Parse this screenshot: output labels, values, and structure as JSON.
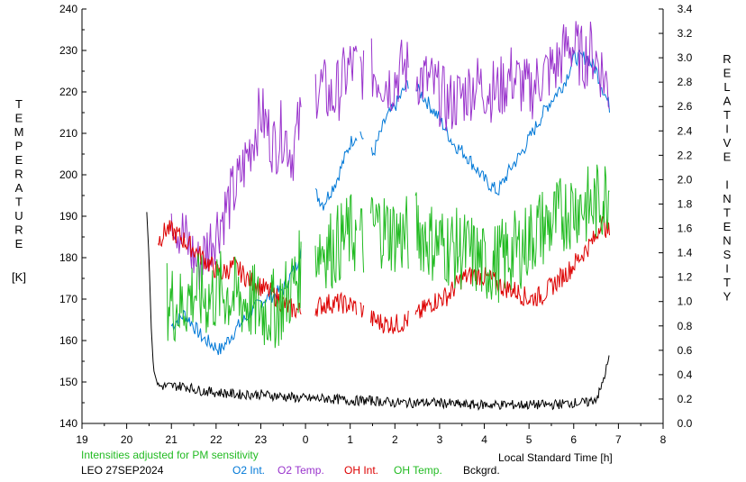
{
  "chart_data": {
    "type": "line",
    "left_axis": {
      "title_letters": [
        "T",
        "E",
        "M",
        "P",
        "E",
        "R",
        "A",
        "T",
        "U",
        "R",
        "E"
      ],
      "unit": "[K]",
      "ylim": [
        140,
        240
      ],
      "ticks": [
        "140",
        "150",
        "160",
        "170",
        "180",
        "190",
        "200",
        "210",
        "220",
        "230",
        "240"
      ]
    },
    "right_axis": {
      "title_letters": [
        "R",
        "E",
        "L",
        "A",
        "T",
        "I",
        "V",
        "E",
        "",
        "I",
        "N",
        "T",
        "E",
        "N",
        "S",
        "I",
        "T",
        "Y"
      ],
      "ylim": [
        0,
        3.4
      ],
      "ticks": [
        "0.0",
        "0.2",
        "0.4",
        "0.6",
        "0.8",
        "1.0",
        "1.2",
        "1.4",
        "1.6",
        "1.8",
        "2.0",
        "2.2",
        "2.4",
        "2.6",
        "2.8",
        "3.0",
        "3.2",
        "3.4"
      ]
    },
    "x_axis": {
      "label": "Local Standard Time [h]",
      "tick_labels": [
        "19",
        "20",
        "21",
        "22",
        "23",
        "0",
        "1",
        "2",
        "3",
        "4",
        "5",
        "6",
        "7",
        "8"
      ]
    },
    "note": "Intensities adjusted for PM sensitivity",
    "station": "LEO 27SEP2024",
    "series": [
      {
        "name": "O2 Int.",
        "color": "#0078d7",
        "axis": "right",
        "points": [
          [
            21.0,
            0.8
          ],
          [
            21.3,
            0.9
          ],
          [
            21.7,
            0.7
          ],
          [
            22.1,
            0.6
          ],
          [
            22.5,
            0.8
          ],
          [
            23.0,
            1.0
          ],
          [
            23.5,
            1.1
          ],
          [
            23.8,
            1.3
          ],
          [
            24.0,
            1.6
          ],
          [
            24.2,
            1.9
          ],
          [
            24.4,
            1.8
          ],
          [
            24.7,
            2.0
          ],
          [
            25.0,
            2.3
          ],
          [
            25.2,
            2.4
          ],
          [
            25.5,
            2.2
          ],
          [
            25.8,
            2.5
          ],
          [
            26.0,
            2.6
          ],
          [
            26.3,
            2.8
          ],
          [
            26.6,
            2.7
          ],
          [
            27.0,
            2.5
          ],
          [
            27.3,
            2.3
          ],
          [
            27.6,
            2.2
          ],
          [
            28.0,
            2.0
          ],
          [
            28.3,
            1.9
          ],
          [
            28.6,
            2.1
          ],
          [
            28.8,
            2.2
          ],
          [
            29.1,
            2.4
          ],
          [
            29.4,
            2.6
          ],
          [
            29.8,
            2.8
          ],
          [
            30.0,
            3.0
          ],
          [
            30.3,
            3.0
          ],
          [
            30.5,
            2.9
          ],
          [
            30.7,
            2.7
          ],
          [
            30.8,
            2.6
          ]
        ]
      },
      {
        "name": "O2 Temp.",
        "color": "#9933cc",
        "axis": "left",
        "points": [
          [
            21.0,
            193
          ],
          [
            21.1,
            189
          ],
          [
            21.6,
            178
          ],
          [
            22.5,
            198
          ],
          [
            23.0,
            215
          ],
          [
            23.3,
            207
          ],
          [
            23.5,
            211
          ],
          [
            23.7,
            205
          ],
          [
            24.0,
            218
          ],
          [
            24.3,
            222
          ],
          [
            24.6,
            218
          ],
          [
            25.0,
            226
          ],
          [
            25.5,
            225
          ],
          [
            25.9,
            222
          ],
          [
            26.2,
            226
          ],
          [
            26.5,
            224
          ],
          [
            26.8,
            222
          ],
          [
            27.2,
            217
          ],
          [
            27.5,
            219
          ],
          [
            27.8,
            222
          ],
          [
            28.0,
            221
          ],
          [
            28.3,
            220
          ],
          [
            28.6,
            224
          ],
          [
            29.0,
            220
          ],
          [
            29.3,
            224
          ],
          [
            29.6,
            226
          ],
          [
            29.9,
            232
          ],
          [
            30.2,
            228
          ],
          [
            30.4,
            230
          ],
          [
            30.6,
            226
          ],
          [
            30.8,
            220
          ]
        ]
      },
      {
        "name": "OH Int.",
        "color": "#dd0000",
        "axis": "left",
        "points": [
          [
            20.7,
            184
          ],
          [
            20.9,
            187
          ],
          [
            21.2,
            185
          ],
          [
            21.5,
            182
          ],
          [
            21.8,
            179
          ],
          [
            22.1,
            176
          ],
          [
            22.4,
            178
          ],
          [
            22.7,
            175
          ],
          [
            23.0,
            173
          ],
          [
            23.3,
            171
          ],
          [
            23.6,
            168
          ],
          [
            23.9,
            167
          ],
          [
            24.2,
            168
          ],
          [
            24.5,
            169
          ],
          [
            24.8,
            169
          ],
          [
            25.2,
            168
          ],
          [
            25.5,
            165
          ],
          [
            25.8,
            164
          ],
          [
            26.1,
            164
          ],
          [
            26.5,
            166
          ],
          [
            26.8,
            169
          ],
          [
            27.2,
            171
          ],
          [
            27.5,
            175
          ],
          [
            27.8,
            176
          ],
          [
            28.1,
            175
          ],
          [
            28.4,
            173
          ],
          [
            28.7,
            172
          ],
          [
            29.0,
            170
          ],
          [
            29.3,
            171
          ],
          [
            29.6,
            174
          ],
          [
            29.9,
            177
          ],
          [
            30.2,
            181
          ],
          [
            30.5,
            185
          ],
          [
            30.6,
            189
          ],
          [
            30.8,
            186
          ]
        ]
      },
      {
        "name": "OH Temp.",
        "color": "#22bb22",
        "axis": "left",
        "points": [
          [
            20.9,
            170
          ],
          [
            21.2,
            168
          ],
          [
            21.5,
            172
          ],
          [
            21.8,
            170
          ],
          [
            22.1,
            172
          ],
          [
            22.5,
            170
          ],
          [
            22.8,
            169
          ],
          [
            23.1,
            167
          ],
          [
            23.4,
            168
          ],
          [
            23.7,
            173
          ],
          [
            24.0,
            180
          ],
          [
            24.3,
            183
          ],
          [
            24.6,
            182
          ],
          [
            25.0,
            186
          ],
          [
            25.3,
            184
          ],
          [
            25.6,
            188
          ],
          [
            25.9,
            186
          ],
          [
            26.2,
            185
          ],
          [
            26.5,
            187
          ],
          [
            26.8,
            184
          ],
          [
            27.1,
            183
          ],
          [
            27.4,
            182
          ],
          [
            27.7,
            181
          ],
          [
            28.0,
            178
          ],
          [
            28.3,
            179
          ],
          [
            28.6,
            181
          ],
          [
            28.9,
            183
          ],
          [
            29.2,
            187
          ],
          [
            29.5,
            188
          ],
          [
            29.8,
            191
          ],
          [
            30.1,
            193
          ],
          [
            30.4,
            192
          ],
          [
            30.7,
            195
          ],
          [
            30.8,
            197
          ]
        ]
      },
      {
        "name": "Bckgrd.",
        "color": "#000000",
        "axis": "left",
        "points": [
          [
            20.45,
            191
          ],
          [
            20.5,
            180
          ],
          [
            20.55,
            163
          ],
          [
            20.6,
            153
          ],
          [
            20.7,
            149
          ],
          [
            21.0,
            149
          ],
          [
            21.3,
            149
          ],
          [
            21.6,
            148
          ],
          [
            22.0,
            147.5
          ],
          [
            22.5,
            147
          ],
          [
            23.0,
            147
          ],
          [
            23.5,
            146.5
          ],
          [
            24.0,
            146
          ],
          [
            24.5,
            146
          ],
          [
            25.0,
            145.5
          ],
          [
            25.5,
            145.5
          ],
          [
            26.0,
            145
          ],
          [
            26.5,
            145
          ],
          [
            27.0,
            145
          ],
          [
            27.5,
            144.5
          ],
          [
            28.0,
            144.5
          ],
          [
            28.5,
            144.5
          ],
          [
            29.0,
            144.5
          ],
          [
            29.5,
            144.5
          ],
          [
            30.0,
            145
          ],
          [
            30.3,
            145
          ],
          [
            30.5,
            146
          ],
          [
            30.6,
            148
          ],
          [
            30.7,
            152
          ],
          [
            30.8,
            156
          ]
        ]
      }
    ]
  }
}
